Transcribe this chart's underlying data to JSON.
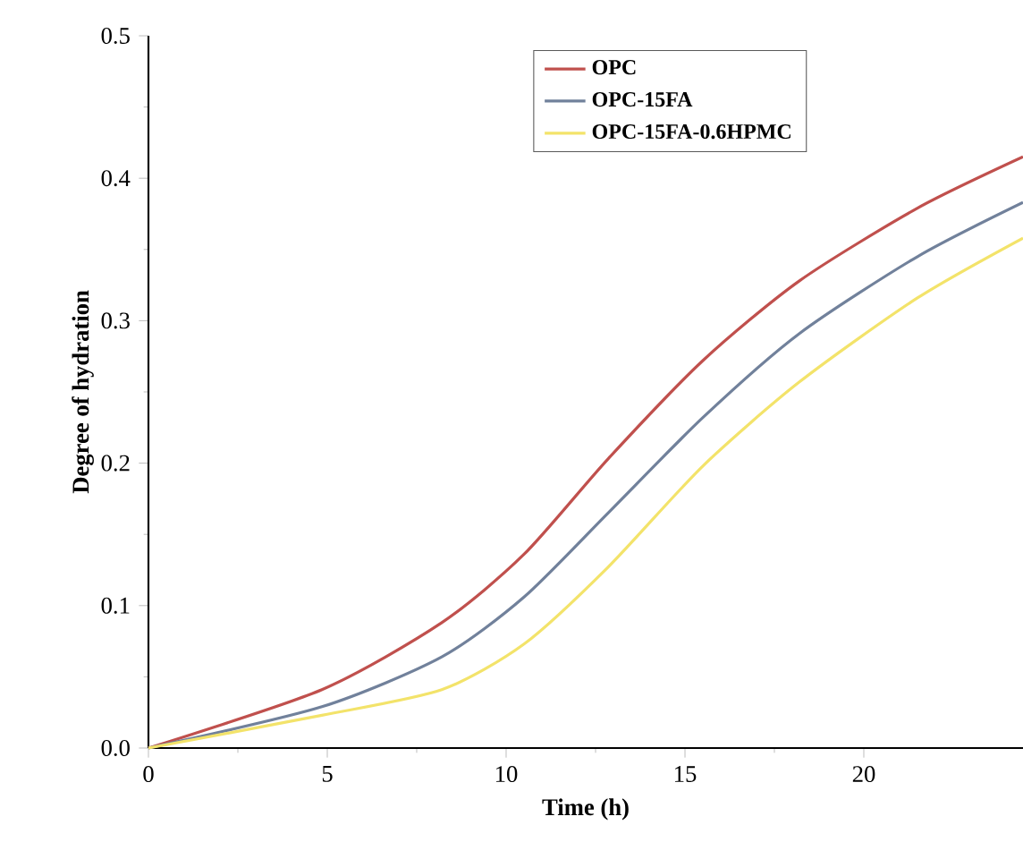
{
  "chart_data": {
    "type": "line",
    "xlabel": "Time (h)",
    "ylabel": "Degree of hydration",
    "xlim": [
      0,
      24.45
    ],
    "ylim": [
      0,
      0.5
    ],
    "xticks": [
      0,
      5,
      10,
      15,
      20
    ],
    "yticks": [
      {
        "value": 0,
        "label": "0.0"
      },
      0.1,
      0.2,
      0.3,
      0.4,
      0.5
    ],
    "legend": "top",
    "marker": "none",
    "line_style": "solid",
    "grid": false,
    "series": [
      {
        "name": "OPC",
        "color": "#c0504d",
        "x": [
          0,
          4.85,
          8.2,
          10.5,
          12.85,
          15.5,
          18.2,
          21.5,
          24.45
        ],
        "values": [
          0,
          0.041,
          0.088,
          0.136,
          0.203,
          0.272,
          0.328,
          0.379,
          0.415
        ]
      },
      {
        "name": "OPC-15FA",
        "color": "#71819b",
        "x": [
          0,
          4.85,
          8.2,
          10.5,
          12.85,
          15.5,
          18.2,
          21.5,
          24.45
        ],
        "values": [
          0,
          0.029,
          0.064,
          0.106,
          0.165,
          0.232,
          0.291,
          0.345,
          0.383
        ]
      },
      {
        "name": "OPC-15FA-0.6HPMC",
        "color": "#f3e36a",
        "x": [
          0,
          4.85,
          8.2,
          10.5,
          12.85,
          15.5,
          18.2,
          21.5,
          24.45
        ],
        "values": [
          0,
          0.023,
          0.041,
          0.073,
          0.127,
          0.198,
          0.257,
          0.316,
          0.358
        ]
      }
    ]
  }
}
